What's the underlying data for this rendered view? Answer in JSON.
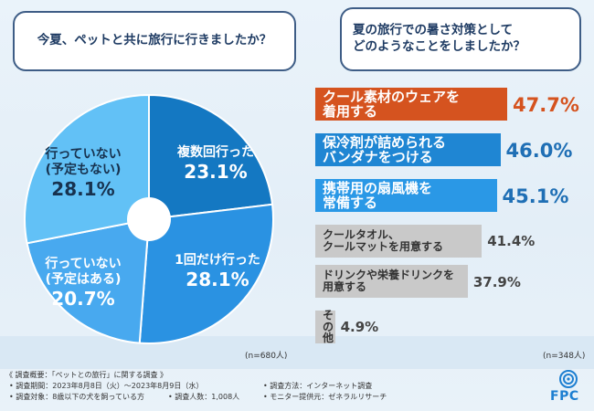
{
  "q1": "今夏、ペットと共に旅行に行きましたか？",
  "q2": "夏の旅行での暑さ対策として\nどのようなことをしましたか？",
  "n1": "(n=680人)",
  "n2": "(n=348人)",
  "chart_data": [
    {
      "type": "pie",
      "title": "今夏、ペットと共に旅行に行きましたか？",
      "n": "(n=680人)",
      "slices": [
        {
          "label": "複数回行った",
          "value": 23.1,
          "display": "23.1%",
          "color": "#1478c2"
        },
        {
          "label": "1回だけ行った",
          "value": 28.1,
          "display": "28.1%",
          "color": "#2a92e2"
        },
        {
          "label": "行っていない\n(予定はある)",
          "value": 20.7,
          "display": "20.7%",
          "color": "#48a9ef"
        },
        {
          "label": "行っていない\n(予定もない)",
          "value": 28.1,
          "display": "28.1%",
          "color": "#62c1f6"
        }
      ]
    },
    {
      "type": "bar",
      "orientation": "horizontal",
      "title": "夏の旅行での暑さ対策としてどのようなことをしましたか？",
      "n": "(n=348人)",
      "xlim": [
        0,
        50
      ],
      "bars": [
        {
          "label": "クール素材のウェアを\n着用する",
          "value": 47.7,
          "display": "47.7%",
          "color": "#d5531f",
          "text_color": "#d5531f",
          "emphasis": true
        },
        {
          "label": "保冷剤が詰められる\nバンダナをつける",
          "value": 46.0,
          "display": "46.0%",
          "color": "#1f86d3",
          "text_color": "#1f6fb5",
          "emphasis": true
        },
        {
          "label": "携帯用の扇風機を\n常備する",
          "value": 45.1,
          "display": "45.1%",
          "color": "#2a98e6",
          "text_color": "#1f6fb5",
          "emphasis": true
        },
        {
          "label": "クールタオル、\nクールマットを用意する",
          "value": 41.4,
          "display": "41.4%",
          "color": "#c9c9c9",
          "text_color": "#444444",
          "emphasis": false
        },
        {
          "label": "ドリンクや栄養ドリンクを\n用意する",
          "value": 37.9,
          "display": "37.9%",
          "color": "#c9c9c9",
          "text_color": "#444444",
          "emphasis": false
        },
        {
          "label": "その他",
          "value": 4.9,
          "display": "4.9%",
          "color": "#c9c9c9",
          "text_color": "#444444",
          "emphasis": false
        }
      ]
    }
  ],
  "footer": {
    "title": "《 調査概要：「ペットとの旅行」に関する調査 》",
    "period": "• 調査期間：2023年8月8日（火）～2023年8月9日（水）",
    "method": "• 調査方法：インターネット調査",
    "target": "• 調査対象：8歳以下の犬を飼っている方",
    "count": "• 調査人数：1,008人",
    "provider": "• モニター提供元：ゼネラルリサーチ"
  },
  "logo": {
    "text": "FPC",
    "color": "#1d7fd1"
  }
}
